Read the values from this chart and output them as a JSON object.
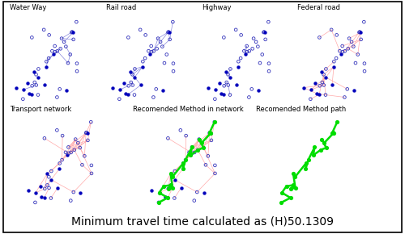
{
  "title": "Minimum travel time calculated as (H)50.1309",
  "title_fontsize": 10,
  "background_color": "#ffffff",
  "panels": [
    {
      "label": "Water Way",
      "row": 0,
      "col": 0
    },
    {
      "label": "Rail road",
      "row": 0,
      "col": 1
    },
    {
      "label": "Highway",
      "row": 0,
      "col": 2
    },
    {
      "label": "Federal road",
      "row": 0,
      "col": 3
    },
    {
      "label": "Transport network",
      "row": 1,
      "col": 0
    },
    {
      "label": "Recomended Method in network",
      "row": 1,
      "col": 1
    },
    {
      "label": "Recomended Method path",
      "row": 1,
      "col": 2
    }
  ]
}
